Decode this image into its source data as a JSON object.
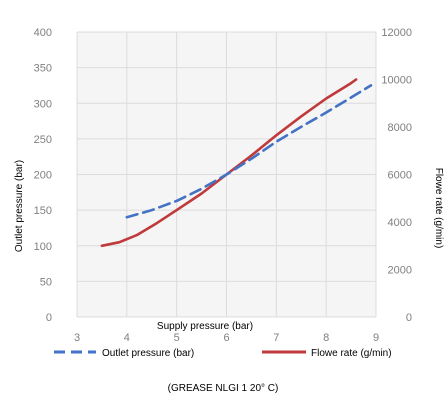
{
  "chart_data": {
    "type": "line",
    "xlabel": "Supply pressure (bar)",
    "ylabel_left": "Outlet pressure (bar)",
    "ylabel_right": "Flowe rate (g/min)",
    "x_ticks": [
      "3",
      "4",
      "5",
      "6",
      "7",
      "8",
      "9"
    ],
    "xlim": [
      3,
      9
    ],
    "y_left_ticks": [
      "0",
      "50",
      "100",
      "150",
      "200",
      "250",
      "300",
      "350",
      "400"
    ],
    "y_left_lim": [
      0,
      400
    ],
    "y_right_ticks": [
      "0",
      "2000",
      "4000",
      "6000",
      "8000",
      "10000",
      "12000"
    ],
    "y_right_lim": [
      0,
      12000
    ],
    "grid": true,
    "legend_position": "bottom",
    "series": [
      {
        "name": "Outlet pressure (bar)",
        "axis": "left",
        "style": "dashed",
        "color": "#4472c4",
        "x": [
          4,
          4.5,
          5,
          5.5,
          6,
          6.5,
          7,
          7.5,
          8,
          8.5,
          8.9
        ],
        "y": [
          140,
          150,
          163,
          180,
          200,
          222,
          246,
          267,
          287,
          308,
          325
        ]
      },
      {
        "name": "Flowe rate (g/min)",
        "axis": "right",
        "style": "solid",
        "color": "#c0393b",
        "x": [
          3.5,
          3.85,
          4.2,
          4.6,
          5,
          5.5,
          6,
          6.5,
          7,
          7.5,
          8,
          8.5,
          8.6
        ],
        "y": [
          3000,
          3150,
          3450,
          3950,
          4500,
          5200,
          6000,
          6800,
          7650,
          8450,
          9200,
          9850,
          10000
        ]
      }
    ]
  },
  "caption": "(GREASE NLGI 1 20° C)"
}
